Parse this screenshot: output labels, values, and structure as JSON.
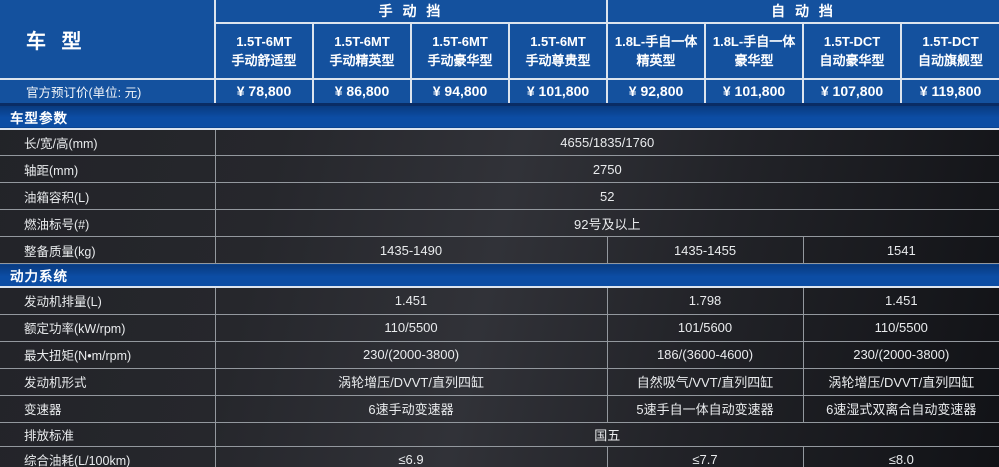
{
  "table": {
    "model_header": "车 型",
    "price_label": "官方预订价(单位: 元)",
    "groups": [
      {
        "label": "手 动 挡",
        "span": 4
      },
      {
        "label": "自 动 挡",
        "span": 4
      }
    ],
    "columns": [
      {
        "line1": "1.5T-6MT",
        "line2": "手动舒适型",
        "price": "¥ 78,800"
      },
      {
        "line1": "1.5T-6MT",
        "line2": "手动精英型",
        "price": "¥ 86,800"
      },
      {
        "line1": "1.5T-6MT",
        "line2": "手动豪华型",
        "price": "¥ 94,800"
      },
      {
        "line1": "1.5T-6MT",
        "line2": "手动尊贵型",
        "price": "¥ 101,800"
      },
      {
        "line1": "1.8L-手自一体",
        "line2": "精英型",
        "price": "¥ 92,800"
      },
      {
        "line1": "1.8L-手自一体",
        "line2": "豪华型",
        "price": "¥ 101,800"
      },
      {
        "line1": "1.5T-DCT",
        "line2": "自动豪华型",
        "price": "¥ 107,800"
      },
      {
        "line1": "1.5T-DCT",
        "line2": "自动旗舰型",
        "price": "¥ 119,800"
      }
    ],
    "sections": [
      {
        "title": "车型参数",
        "rows": [
          {
            "label": "长/宽/高(mm)",
            "values": [
              {
                "text": "4655/1835/1760",
                "span": 8
              }
            ]
          },
          {
            "label": "轴距(mm)",
            "values": [
              {
                "text": "2750",
                "span": 8
              }
            ]
          },
          {
            "label": "油箱容积(L)",
            "values": [
              {
                "text": "52",
                "span": 8
              }
            ]
          },
          {
            "label": "燃油标号(#)",
            "values": [
              {
                "text": "92号及以上",
                "span": 8
              }
            ]
          },
          {
            "label": "整备质量(kg)",
            "values": [
              {
                "text": "1435-1490",
                "span": 4
              },
              {
                "text": "1435-1455",
                "span": 2
              },
              {
                "text": "1541",
                "span": 2
              }
            ]
          }
        ]
      },
      {
        "title": "动力系统",
        "rows": [
          {
            "label": "发动机排量(L)",
            "values": [
              {
                "text": "1.451",
                "span": 4
              },
              {
                "text": "1.798",
                "span": 2
              },
              {
                "text": "1.451",
                "span": 2
              }
            ]
          },
          {
            "label": "额定功率(kW/rpm)",
            "values": [
              {
                "text": "110/5500",
                "span": 4
              },
              {
                "text": "101/5600",
                "span": 2
              },
              {
                "text": "110/5500",
                "span": 2
              }
            ]
          },
          {
            "label": "最大扭矩(N•m/rpm)",
            "values": [
              {
                "text": "230/(2000-3800)",
                "span": 4
              },
              {
                "text": "186/(3600-4600)",
                "span": 2
              },
              {
                "text": "230/(2000-3800)",
                "span": 2
              }
            ]
          },
          {
            "label": "发动机形式",
            "values": [
              {
                "text": "涡轮增压/DVVT/直列四缸",
                "span": 4
              },
              {
                "text": "自然吸气/VVT/直列四缸",
                "span": 2
              },
              {
                "text": "涡轮增压/DVVT/直列四缸",
                "span": 2
              }
            ]
          },
          {
            "label": "变速器",
            "values": [
              {
                "text": "6速手动变速器",
                "span": 4
              },
              {
                "text": "5速手自一体自动变速器",
                "span": 2
              },
              {
                "text": "6速湿式双离合自动变速器",
                "span": 2
              }
            ]
          },
          {
            "label": "排放标准",
            "values": [
              {
                "text": "国五",
                "span": 8
              }
            ],
            "short": true
          },
          {
            "label": "综合油耗(L/100km)",
            "values": [
              {
                "text": "≤6.9",
                "span": 4
              },
              {
                "text": "≤7.7",
                "span": 2
              },
              {
                "text": "≤8.0",
                "span": 2
              }
            ]
          }
        ]
      }
    ],
    "colors": {
      "header_blue": "#14519e",
      "section_bar_blue": "#0c4da4",
      "body_dark": "#222328",
      "separator_gray": "#93989e",
      "separator_white": "#dce4ee",
      "text_white": "#ffffff"
    }
  }
}
